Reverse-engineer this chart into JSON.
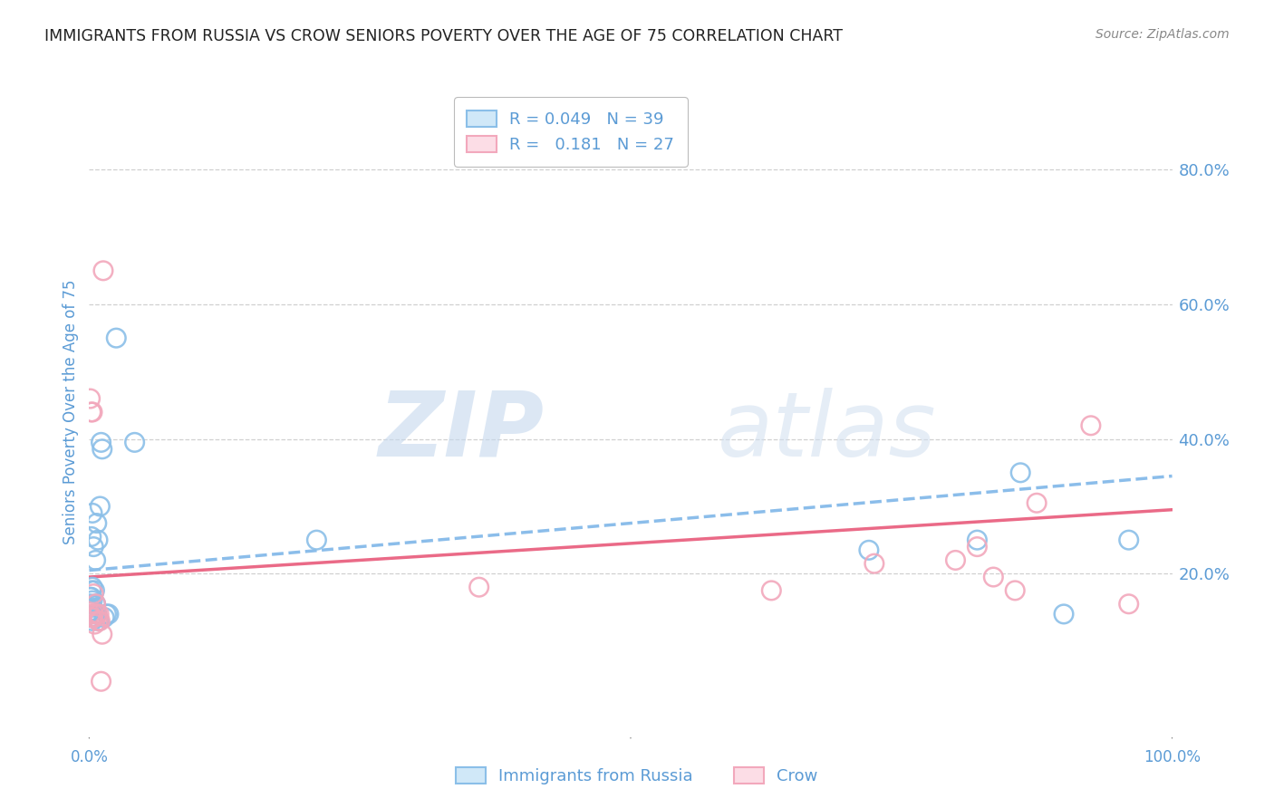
{
  "title": "IMMIGRANTS FROM RUSSIA VS CROW SENIORS POVERTY OVER THE AGE OF 75 CORRELATION CHART",
  "source": "Source: ZipAtlas.com",
  "ylabel": "Seniors Poverty Over the Age of 75",
  "right_yticks": [
    "80.0%",
    "60.0%",
    "40.0%",
    "20.0%"
  ],
  "right_ytick_vals": [
    0.8,
    0.6,
    0.4,
    0.2
  ],
  "xlim": [
    0.0,
    1.0
  ],
  "ylim": [
    -0.04,
    0.92
  ],
  "color_blue": "#8BBFE8",
  "color_pink": "#F2A8BC",
  "line_blue_color": "#7EB6E8",
  "line_pink_color": "#E85A7A",
  "watermark_part1": "ZIP",
  "watermark_part2": "atlas",
  "blue_x": [
    0.001,
    0.001,
    0.001,
    0.002,
    0.002,
    0.002,
    0.002,
    0.002,
    0.003,
    0.003,
    0.003,
    0.003,
    0.003,
    0.004,
    0.004,
    0.004,
    0.005,
    0.005,
    0.006,
    0.006,
    0.006,
    0.007,
    0.007,
    0.008,
    0.009,
    0.01,
    0.011,
    0.012,
    0.014,
    0.016,
    0.018,
    0.025,
    0.042,
    0.21,
    0.72,
    0.82,
    0.86,
    0.9,
    0.96
  ],
  "blue_y": [
    0.145,
    0.155,
    0.165,
    0.135,
    0.15,
    0.165,
    0.175,
    0.255,
    0.13,
    0.145,
    0.16,
    0.18,
    0.29,
    0.135,
    0.145,
    0.24,
    0.135,
    0.175,
    0.14,
    0.155,
    0.22,
    0.14,
    0.275,
    0.25,
    0.13,
    0.3,
    0.395,
    0.385,
    0.135,
    0.14,
    0.14,
    0.55,
    0.395,
    0.25,
    0.235,
    0.25,
    0.35,
    0.14,
    0.25
  ],
  "pink_x": [
    0.001,
    0.001,
    0.002,
    0.002,
    0.003,
    0.003,
    0.004,
    0.004,
    0.005,
    0.006,
    0.007,
    0.008,
    0.009,
    0.01,
    0.011,
    0.012,
    0.013,
    0.36,
    0.63,
    0.725,
    0.8,
    0.82,
    0.835,
    0.855,
    0.875,
    0.925,
    0.96
  ],
  "pink_y": [
    0.14,
    0.46,
    0.135,
    0.44,
    0.135,
    0.44,
    0.14,
    0.17,
    0.125,
    0.155,
    0.14,
    0.13,
    0.14,
    0.13,
    0.04,
    0.11,
    0.65,
    0.18,
    0.175,
    0.215,
    0.22,
    0.24,
    0.195,
    0.175,
    0.305,
    0.42,
    0.155
  ],
  "blue_trend": [
    0.205,
    0.345
  ],
  "pink_trend": [
    0.195,
    0.295
  ],
  "grid_color": "#D0D0D0",
  "background_color": "#FFFFFF",
  "title_color": "#222222",
  "axis_label_color": "#5B9BD5",
  "tick_color": "#5B9BD5",
  "source_color": "#888888"
}
